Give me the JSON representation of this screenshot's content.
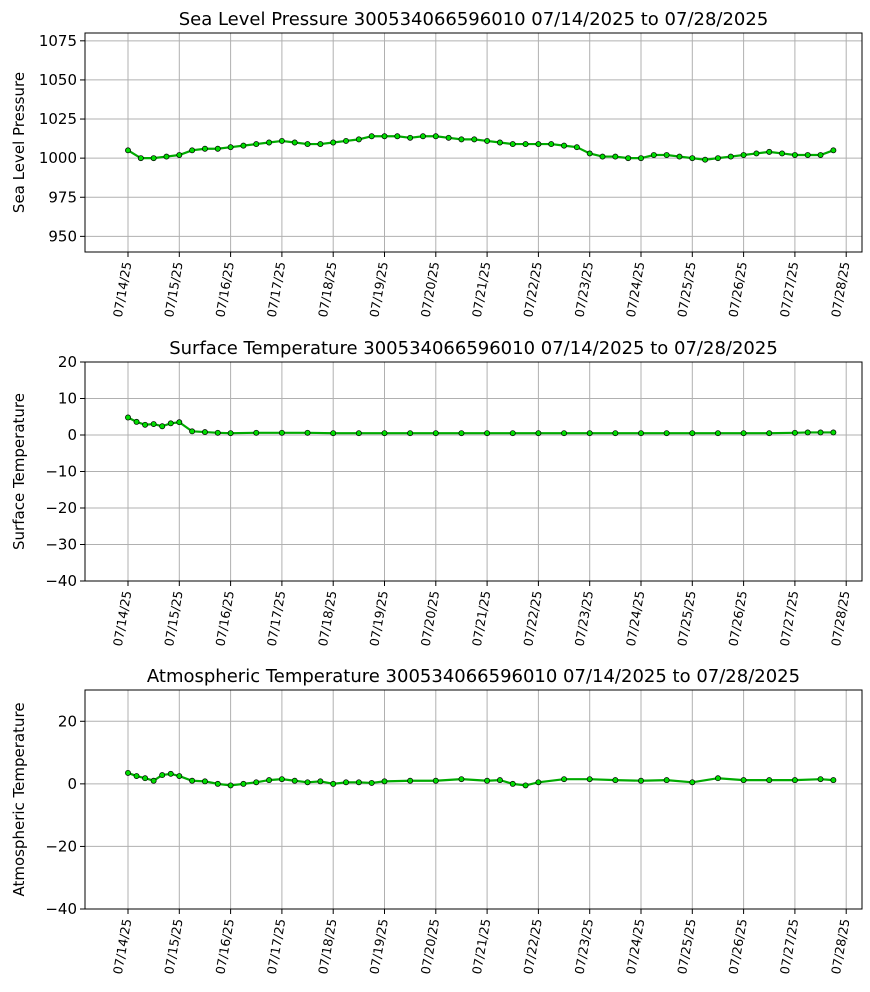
{
  "colors": {
    "marker_fill": "#00dd00",
    "marker_edge": "#000000",
    "grid": "#b0b0b0"
  },
  "chart_data": [
    {
      "type": "line",
      "title": "Sea Level Pressure 300534066596010  07/14/2025 to 07/28/2025",
      "xlabel": "",
      "ylabel": "Sea Level Pressure",
      "ylim": [
        940,
        1080
      ],
      "yticks": [
        "950",
        "975",
        "1000",
        "1025",
        "1050",
        "1075"
      ],
      "xticks": [
        "07/14/25",
        "07/15/25",
        "07/16/25",
        "07/17/25",
        "07/18/25",
        "07/19/25",
        "07/20/25",
        "07/21/25",
        "07/22/25",
        "07/23/25",
        "07/24/25",
        "07/25/25",
        "07/26/25",
        "07/27/25",
        "07/28/25"
      ],
      "grid": true,
      "x": [
        "07/14/25 00:00",
        "07/14/25 06:00",
        "07/14/25 12:00",
        "07/14/25 18:00",
        "07/15/25 00:00",
        "07/15/25 06:00",
        "07/15/25 12:00",
        "07/15/25 18:00",
        "07/16/25 00:00",
        "07/16/25 06:00",
        "07/16/25 12:00",
        "07/16/25 18:00",
        "07/17/25 00:00",
        "07/17/25 06:00",
        "07/17/25 12:00",
        "07/17/25 18:00",
        "07/18/25 00:00",
        "07/18/25 06:00",
        "07/18/25 12:00",
        "07/18/25 18:00",
        "07/19/25 00:00",
        "07/19/25 06:00",
        "07/19/25 12:00",
        "07/19/25 18:00",
        "07/20/25 00:00",
        "07/20/25 06:00",
        "07/20/25 12:00",
        "07/20/25 18:00",
        "07/21/25 00:00",
        "07/21/25 06:00",
        "07/21/25 12:00",
        "07/21/25 18:00",
        "07/22/25 00:00",
        "07/22/25 06:00",
        "07/22/25 12:00",
        "07/22/25 18:00",
        "07/23/25 00:00",
        "07/23/25 06:00",
        "07/23/25 12:00",
        "07/23/25 18:00",
        "07/24/25 00:00",
        "07/24/25 06:00",
        "07/24/25 12:00",
        "07/24/25 18:00",
        "07/25/25 00:00",
        "07/25/25 06:00",
        "07/25/25 12:00",
        "07/25/25 18:00",
        "07/26/25 00:00",
        "07/26/25 06:00",
        "07/26/25 12:00",
        "07/26/25 18:00",
        "07/27/25 00:00",
        "07/27/25 06:00",
        "07/27/25 12:00",
        "07/27/25 18:00"
      ],
      "values": [
        1005,
        1000,
        1000,
        1001,
        1002,
        1005,
        1006,
        1006,
        1007,
        1008,
        1009,
        1010,
        1011,
        1010,
        1009,
        1009,
        1010,
        1011,
        1012,
        1014,
        1014,
        1014,
        1013,
        1014,
        1014,
        1013,
        1012,
        1012,
        1011,
        1010,
        1009,
        1009,
        1009,
        1009,
        1008,
        1007,
        1003,
        1001,
        1001,
        1000,
        1000,
        1002,
        1002,
        1001,
        1000,
        999,
        1000,
        1001,
        1002,
        1003,
        1004,
        1003,
        1002,
        1002,
        1002,
        1005
      ]
    },
    {
      "type": "line",
      "title": "Surface Temperature 300534066596010  07/14/2025 to 07/28/2025",
      "xlabel": "",
      "ylabel": "Surface Temperature",
      "ylim": [
        -40,
        20
      ],
      "yticks": [
        "−40",
        "−30",
        "−20",
        "−10",
        "0",
        "10",
        "20"
      ],
      "xticks": [
        "07/14/25",
        "07/15/25",
        "07/16/25",
        "07/17/25",
        "07/18/25",
        "07/19/25",
        "07/20/25",
        "07/21/25",
        "07/22/25",
        "07/23/25",
        "07/24/25",
        "07/25/25",
        "07/26/25",
        "07/27/25",
        "07/28/25"
      ],
      "grid": true,
      "x": [
        "07/14/25 00:00",
        "07/14/25 04:00",
        "07/14/25 08:00",
        "07/14/25 12:00",
        "07/14/25 16:00",
        "07/14/25 20:00",
        "07/15/25 00:00",
        "07/15/25 06:00",
        "07/15/25 12:00",
        "07/15/25 18:00",
        "07/16/25 00:00",
        "07/16/25 12:00",
        "07/17/25 00:00",
        "07/17/25 12:00",
        "07/18/25 00:00",
        "07/18/25 12:00",
        "07/19/25 00:00",
        "07/19/25 12:00",
        "07/20/25 00:00",
        "07/20/25 12:00",
        "07/21/25 00:00",
        "07/21/25 12:00",
        "07/22/25 00:00",
        "07/22/25 12:00",
        "07/23/25 00:00",
        "07/23/25 12:00",
        "07/24/25 00:00",
        "07/24/25 12:00",
        "07/25/25 00:00",
        "07/25/25 12:00",
        "07/26/25 00:00",
        "07/26/25 12:00",
        "07/27/25 00:00",
        "07/27/25 06:00",
        "07/27/25 12:00",
        "07/27/25 18:00"
      ],
      "values": [
        4.8,
        3.6,
        2.8,
        3.0,
        2.4,
        3.2,
        3.5,
        1.0,
        0.8,
        0.6,
        0.5,
        0.6,
        0.6,
        0.6,
        0.5,
        0.5,
        0.5,
        0.5,
        0.5,
        0.5,
        0.5,
        0.5,
        0.5,
        0.5,
        0.5,
        0.5,
        0.5,
        0.5,
        0.5,
        0.5,
        0.5,
        0.5,
        0.6,
        0.7,
        0.7,
        0.7
      ]
    },
    {
      "type": "line",
      "title": "Atmospheric Temperature 300534066596010  07/14/2025 to 07/28/2025",
      "xlabel": "",
      "ylabel": "Atmospheric Temperature",
      "ylim": [
        -40,
        30
      ],
      "yticks": [
        "−40",
        "−20",
        "0",
        "20"
      ],
      "xticks": [
        "07/14/25",
        "07/15/25",
        "07/16/25",
        "07/17/25",
        "07/18/25",
        "07/19/25",
        "07/20/25",
        "07/21/25",
        "07/22/25",
        "07/23/25",
        "07/24/25",
        "07/25/25",
        "07/26/25",
        "07/27/25",
        "07/28/25"
      ],
      "grid": true,
      "x": [
        "07/14/25 00:00",
        "07/14/25 04:00",
        "07/14/25 08:00",
        "07/14/25 12:00",
        "07/14/25 16:00",
        "07/14/25 20:00",
        "07/15/25 00:00",
        "07/15/25 06:00",
        "07/15/25 12:00",
        "07/15/25 18:00",
        "07/16/25 00:00",
        "07/16/25 06:00",
        "07/16/25 12:00",
        "07/16/25 18:00",
        "07/17/25 00:00",
        "07/17/25 06:00",
        "07/17/25 12:00",
        "07/17/25 18:00",
        "07/18/25 00:00",
        "07/18/25 06:00",
        "07/18/25 12:00",
        "07/18/25 18:00",
        "07/19/25 00:00",
        "07/19/25 12:00",
        "07/20/25 00:00",
        "07/20/25 12:00",
        "07/21/25 00:00",
        "07/21/25 06:00",
        "07/21/25 12:00",
        "07/21/25 18:00",
        "07/22/25 00:00",
        "07/22/25 12:00",
        "07/23/25 00:00",
        "07/23/25 12:00",
        "07/24/25 00:00",
        "07/24/25 12:00",
        "07/25/25 00:00",
        "07/25/25 12:00",
        "07/26/25 00:00",
        "07/26/25 12:00",
        "07/27/25 00:00",
        "07/27/25 12:00",
        "07/27/25 18:00"
      ],
      "values": [
        3.5,
        2.5,
        1.8,
        1.0,
        2.8,
        3.2,
        2.5,
        1.0,
        0.8,
        0,
        -0.5,
        0,
        0.5,
        1.2,
        1.5,
        1.0,
        0.5,
        0.8,
        0,
        0.5,
        0.5,
        0.3,
        0.8,
        1.0,
        1.0,
        1.5,
        1.0,
        1.2,
        0,
        -0.5,
        0.5,
        1.5,
        1.5,
        1.2,
        1.0,
        1.2,
        0.5,
        1.8,
        1.2,
        1.2,
        1.2,
        1.5,
        1.2
      ]
    }
  ]
}
